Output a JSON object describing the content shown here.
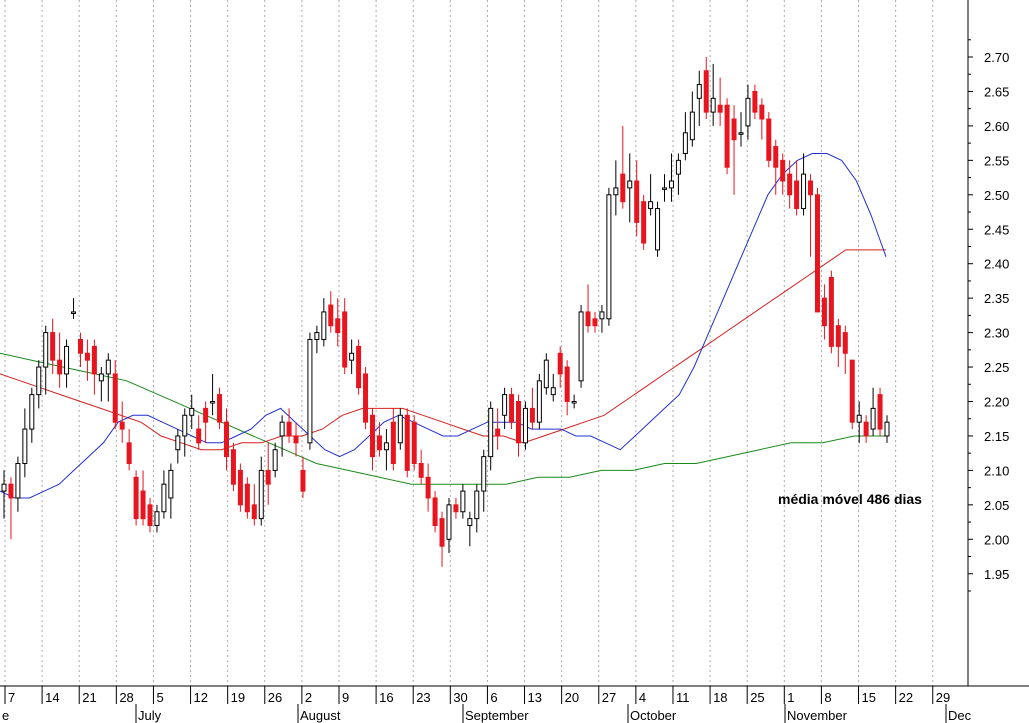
{
  "chart_data": {
    "type": "candlestick",
    "ylim": [
      1.9,
      2.73
    ],
    "y_ticks": [
      "2.70",
      "2.65",
      "2.60",
      "2.55",
      "2.50",
      "2.45",
      "2.40",
      "2.35",
      "2.30",
      "2.25",
      "2.20",
      "2.15",
      "2.10",
      "2.05",
      "2.00",
      "1.95"
    ],
    "day_labels": [
      "7",
      "14",
      "21",
      "28",
      "5",
      "12",
      "19",
      "26",
      "2",
      "9",
      "16",
      "23",
      "30",
      "6",
      "13",
      "20",
      "27",
      "4",
      "11",
      "18",
      "25",
      "1",
      "8",
      "15",
      "22",
      "29"
    ],
    "month_labels": [
      "e",
      "July",
      "August",
      "September",
      "October",
      "November",
      "Dec"
    ],
    "annotation": "média móvel 486 dias",
    "colors": {
      "up": "#ffffff",
      "down": "#e8141e",
      "grid": "#999999",
      "ma_short": "#2030d0",
      "ma_medium": "#d42020",
      "ma_long": "#1a8a1a"
    },
    "candles": [
      {
        "o": 2.07,
        "h": 2.1,
        "l": 2.03,
        "c": 2.08
      },
      {
        "o": 2.08,
        "h": 2.09,
        "l": 2.0,
        "c": 2.06
      },
      {
        "o": 2.06,
        "h": 2.12,
        "l": 2.04,
        "c": 2.11
      },
      {
        "o": 2.11,
        "h": 2.19,
        "l": 2.09,
        "c": 2.16
      },
      {
        "o": 2.16,
        "h": 2.22,
        "l": 2.14,
        "c": 2.21
      },
      {
        "o": 2.21,
        "h": 2.26,
        "l": 2.19,
        "c": 2.25
      },
      {
        "o": 2.25,
        "h": 2.31,
        "l": 2.21,
        "c": 2.3
      },
      {
        "o": 2.3,
        "h": 2.32,
        "l": 2.24,
        "c": 2.26
      },
      {
        "o": 2.26,
        "h": 2.3,
        "l": 2.22,
        "c": 2.24
      },
      {
        "o": 2.24,
        "h": 2.29,
        "l": 2.22,
        "c": 2.28
      },
      {
        "o": 2.33,
        "h": 2.35,
        "l": 2.32,
        "c": 2.33
      },
      {
        "o": 2.29,
        "h": 2.3,
        "l": 2.25,
        "c": 2.27
      },
      {
        "o": 2.27,
        "h": 2.29,
        "l": 2.23,
        "c": 2.26
      },
      {
        "o": 2.28,
        "h": 2.29,
        "l": 2.21,
        "c": 2.24
      },
      {
        "o": 2.23,
        "h": 2.25,
        "l": 2.2,
        "c": 2.24
      },
      {
        "o": 2.24,
        "h": 2.27,
        "l": 2.2,
        "c": 2.26
      },
      {
        "o": 2.24,
        "h": 2.26,
        "l": 2.16,
        "c": 2.17
      },
      {
        "o": 2.17,
        "h": 2.2,
        "l": 2.14,
        "c": 2.16
      },
      {
        "o": 2.14,
        "h": 2.16,
        "l": 2.1,
        "c": 2.11
      },
      {
        "o": 2.09,
        "h": 2.1,
        "l": 2.02,
        "c": 2.03
      },
      {
        "o": 2.07,
        "h": 2.1,
        "l": 2.02,
        "c": 2.03
      },
      {
        "o": 2.05,
        "h": 2.06,
        "l": 2.01,
        "c": 2.02
      },
      {
        "o": 2.02,
        "h": 2.05,
        "l": 2.01,
        "c": 2.04
      },
      {
        "o": 2.04,
        "h": 2.1,
        "l": 2.03,
        "c": 2.08
      },
      {
        "o": 2.06,
        "h": 2.11,
        "l": 2.03,
        "c": 2.1
      },
      {
        "o": 2.13,
        "h": 2.16,
        "l": 2.11,
        "c": 2.15
      },
      {
        "o": 2.15,
        "h": 2.19,
        "l": 2.12,
        "c": 2.18
      },
      {
        "o": 2.18,
        "h": 2.21,
        "l": 2.16,
        "c": 2.19
      },
      {
        "o": 2.16,
        "h": 2.18,
        "l": 2.13,
        "c": 2.14
      },
      {
        "o": 2.19,
        "h": 2.2,
        "l": 2.14,
        "c": 2.17
      },
      {
        "o": 2.2,
        "h": 2.24,
        "l": 2.18,
        "c": 2.2
      },
      {
        "o": 2.21,
        "h": 2.22,
        "l": 2.16,
        "c": 2.17
      },
      {
        "o": 2.17,
        "h": 2.19,
        "l": 2.1,
        "c": 2.12
      },
      {
        "o": 2.13,
        "h": 2.14,
        "l": 2.07,
        "c": 2.08
      },
      {
        "o": 2.1,
        "h": 2.11,
        "l": 2.04,
        "c": 2.05
      },
      {
        "o": 2.08,
        "h": 2.09,
        "l": 2.03,
        "c": 2.04
      },
      {
        "o": 2.05,
        "h": 2.08,
        "l": 2.02,
        "c": 2.03
      },
      {
        "o": 2.03,
        "h": 2.12,
        "l": 2.02,
        "c": 2.1
      },
      {
        "o": 2.1,
        "h": 2.14,
        "l": 2.05,
        "c": 2.08
      },
      {
        "o": 2.1,
        "h": 2.14,
        "l": 2.09,
        "c": 2.13
      },
      {
        "o": 2.15,
        "h": 2.18,
        "l": 2.12,
        "c": 2.17
      },
      {
        "o": 2.17,
        "h": 2.19,
        "l": 2.14,
        "c": 2.15
      },
      {
        "o": 2.15,
        "h": 2.17,
        "l": 2.12,
        "c": 2.14
      },
      {
        "o": 2.1,
        "h": 2.12,
        "l": 2.06,
        "c": 2.07
      },
      {
        "o": 2.14,
        "h": 2.3,
        "l": 2.13,
        "c": 2.29
      },
      {
        "o": 2.29,
        "h": 2.31,
        "l": 2.27,
        "c": 2.3
      },
      {
        "o": 2.29,
        "h": 2.35,
        "l": 2.28,
        "c": 2.33
      },
      {
        "o": 2.34,
        "h": 2.36,
        "l": 2.3,
        "c": 2.31
      },
      {
        "o": 2.32,
        "h": 2.35,
        "l": 2.28,
        "c": 2.3
      },
      {
        "o": 2.33,
        "h": 2.35,
        "l": 2.24,
        "c": 2.25
      },
      {
        "o": 2.26,
        "h": 2.29,
        "l": 2.24,
        "c": 2.27
      },
      {
        "o": 2.28,
        "h": 2.29,
        "l": 2.21,
        "c": 2.22
      },
      {
        "o": 2.24,
        "h": 2.25,
        "l": 2.16,
        "c": 2.17
      },
      {
        "o": 2.18,
        "h": 2.19,
        "l": 2.1,
        "c": 2.12
      },
      {
        "o": 2.15,
        "h": 2.17,
        "l": 2.12,
        "c": 2.13
      },
      {
        "o": 2.13,
        "h": 2.16,
        "l": 2.1,
        "c": 2.14
      },
      {
        "o": 2.17,
        "h": 2.19,
        "l": 2.1,
        "c": 2.11
      },
      {
        "o": 2.14,
        "h": 2.19,
        "l": 2.13,
        "c": 2.18
      },
      {
        "o": 2.18,
        "h": 2.19,
        "l": 2.09,
        "c": 2.1
      },
      {
        "o": 2.17,
        "h": 2.18,
        "l": 2.1,
        "c": 2.11
      },
      {
        "o": 2.11,
        "h": 2.13,
        "l": 2.08,
        "c": 2.09
      },
      {
        "o": 2.09,
        "h": 2.11,
        "l": 2.04,
        "c": 2.06
      },
      {
        "o": 2.06,
        "h": 2.07,
        "l": 2.01,
        "c": 2.02
      },
      {
        "o": 2.03,
        "h": 2.04,
        "l": 1.96,
        "c": 1.99
      },
      {
        "o": 2.0,
        "h": 2.06,
        "l": 1.98,
        "c": 2.05
      },
      {
        "o": 2.05,
        "h": 2.06,
        "l": 2.03,
        "c": 2.04
      },
      {
        "o": 2.04,
        "h": 2.08,
        "l": 2.03,
        "c": 2.07
      },
      {
        "o": 2.02,
        "h": 2.04,
        "l": 1.99,
        "c": 2.03
      },
      {
        "o": 2.03,
        "h": 2.08,
        "l": 2.01,
        "c": 2.07
      },
      {
        "o": 2.07,
        "h": 2.13,
        "l": 2.04,
        "c": 2.12
      },
      {
        "o": 2.12,
        "h": 2.2,
        "l": 2.1,
        "c": 2.19
      },
      {
        "o": 2.16,
        "h": 2.19,
        "l": 2.13,
        "c": 2.15
      },
      {
        "o": 2.18,
        "h": 2.22,
        "l": 2.16,
        "c": 2.21
      },
      {
        "o": 2.21,
        "h": 2.22,
        "l": 2.16,
        "c": 2.17
      },
      {
        "o": 2.2,
        "h": 2.21,
        "l": 2.12,
        "c": 2.14
      },
      {
        "o": 2.14,
        "h": 2.2,
        "l": 2.13,
        "c": 2.19
      },
      {
        "o": 2.19,
        "h": 2.22,
        "l": 2.16,
        "c": 2.17
      },
      {
        "o": 2.17,
        "h": 2.24,
        "l": 2.16,
        "c": 2.23
      },
      {
        "o": 2.22,
        "h": 2.27,
        "l": 2.21,
        "c": 2.26
      },
      {
        "o": 2.21,
        "h": 2.24,
        "l": 2.2,
        "c": 2.22
      },
      {
        "o": 2.27,
        "h": 2.28,
        "l": 2.22,
        "c": 2.24
      },
      {
        "o": 2.25,
        "h": 2.26,
        "l": 2.18,
        "c": 2.2
      },
      {
        "o": 2.2,
        "h": 2.21,
        "l": 2.19,
        "c": 2.2
      },
      {
        "o": 2.23,
        "h": 2.34,
        "l": 2.22,
        "c": 2.33
      },
      {
        "o": 2.33,
        "h": 2.37,
        "l": 2.3,
        "c": 2.31
      },
      {
        "o": 2.32,
        "h": 2.33,
        "l": 2.3,
        "c": 2.31
      },
      {
        "o": 2.32,
        "h": 2.34,
        "l": 2.3,
        "c": 2.33
      },
      {
        "o": 2.32,
        "h": 2.51,
        "l": 2.31,
        "c": 2.5
      },
      {
        "o": 2.5,
        "h": 2.55,
        "l": 2.47,
        "c": 2.51
      },
      {
        "o": 2.53,
        "h": 2.6,
        "l": 2.48,
        "c": 2.49
      },
      {
        "o": 2.51,
        "h": 2.56,
        "l": 2.46,
        "c": 2.52
      },
      {
        "o": 2.52,
        "h": 2.55,
        "l": 2.44,
        "c": 2.46
      },
      {
        "o": 2.49,
        "h": 2.5,
        "l": 2.42,
        "c": 2.43
      },
      {
        "o": 2.48,
        "h": 2.53,
        "l": 2.47,
        "c": 2.49
      },
      {
        "o": 2.42,
        "h": 2.49,
        "l": 2.41,
        "c": 2.48
      },
      {
        "o": 2.51,
        "h": 2.53,
        "l": 2.49,
        "c": 2.51
      },
      {
        "o": 2.51,
        "h": 2.56,
        "l": 2.49,
        "c": 2.52
      },
      {
        "o": 2.53,
        "h": 2.56,
        "l": 2.5,
        "c": 2.55
      },
      {
        "o": 2.56,
        "h": 2.62,
        "l": 2.55,
        "c": 2.59
      },
      {
        "o": 2.58,
        "h": 2.65,
        "l": 2.57,
        "c": 2.62
      },
      {
        "o": 2.64,
        "h": 2.68,
        "l": 2.6,
        "c": 2.66
      },
      {
        "o": 2.68,
        "h": 2.7,
        "l": 2.61,
        "c": 2.62
      },
      {
        "o": 2.62,
        "h": 2.69,
        "l": 2.6,
        "c": 2.64
      },
      {
        "o": 2.63,
        "h": 2.67,
        "l": 2.6,
        "c": 2.62
      },
      {
        "o": 2.63,
        "h": 2.64,
        "l": 2.53,
        "c": 2.54
      },
      {
        "o": 2.61,
        "h": 2.63,
        "l": 2.5,
        "c": 2.58
      },
      {
        "o": 2.59,
        "h": 2.62,
        "l": 2.57,
        "c": 2.59
      },
      {
        "o": 2.6,
        "h": 2.66,
        "l": 2.58,
        "c": 2.64
      },
      {
        "o": 2.65,
        "h": 2.66,
        "l": 2.61,
        "c": 2.62
      },
      {
        "o": 2.63,
        "h": 2.64,
        "l": 2.58,
        "c": 2.61
      },
      {
        "o": 2.61,
        "h": 2.62,
        "l": 2.54,
        "c": 2.55
      },
      {
        "o": 2.57,
        "h": 2.58,
        "l": 2.5,
        "c": 2.54
      },
      {
        "o": 2.55,
        "h": 2.56,
        "l": 2.5,
        "c": 2.52
      },
      {
        "o": 2.53,
        "h": 2.55,
        "l": 2.48,
        "c": 2.5
      },
      {
        "o": 2.52,
        "h": 2.55,
        "l": 2.47,
        "c": 2.48
      },
      {
        "o": 2.48,
        "h": 2.56,
        "l": 2.47,
        "c": 2.53
      },
      {
        "o": 2.52,
        "h": 2.53,
        "l": 2.41,
        "c": 2.5
      },
      {
        "o": 2.5,
        "h": 2.51,
        "l": 2.33,
        "c": 2.33
      },
      {
        "o": 2.35,
        "h": 2.37,
        "l": 2.29,
        "c": 2.31
      },
      {
        "o": 2.38,
        "h": 2.39,
        "l": 2.27,
        "c": 2.28
      },
      {
        "o": 2.31,
        "h": 2.32,
        "l": 2.25,
        "c": 2.28
      },
      {
        "o": 2.3,
        "h": 2.31,
        "l": 2.24,
        "c": 2.27
      },
      {
        "o": 2.26,
        "h": 2.26,
        "l": 2.16,
        "c": 2.17
      },
      {
        "o": 2.17,
        "h": 2.2,
        "l": 2.14,
        "c": 2.18
      },
      {
        "o": 2.17,
        "h": 2.18,
        "l": 2.14,
        "c": 2.15
      },
      {
        "o": 2.16,
        "h": 2.22,
        "l": 2.15,
        "c": 2.19
      },
      {
        "o": 2.21,
        "h": 2.22,
        "l": 2.15,
        "c": 2.16
      },
      {
        "o": 2.15,
        "h": 2.18,
        "l": 2.14,
        "c": 2.17
      }
    ],
    "ma_short": [
      2.07,
      2.06,
      2.06,
      2.07,
      2.08,
      2.1,
      2.12,
      2.14,
      2.17,
      2.18,
      2.18,
      2.17,
      2.16,
      2.15,
      2.14,
      2.14,
      2.15,
      2.16,
      2.18,
      2.19,
      2.17,
      2.15,
      2.13,
      2.12,
      2.13,
      2.15,
      2.17,
      2.18,
      2.17,
      2.16,
      2.15,
      2.15,
      2.16,
      2.17,
      2.17,
      2.17,
      2.16,
      2.16,
      2.16,
      2.15,
      2.15,
      2.14,
      2.13,
      2.15,
      2.17,
      2.19,
      2.21,
      2.25,
      2.3,
      2.35,
      2.4,
      2.45,
      2.5,
      2.53,
      2.55,
      2.56,
      2.56,
      2.55,
      2.52,
      2.47,
      2.41
    ],
    "ma_medium": [
      2.24,
      2.23,
      2.22,
      2.21,
      2.2,
      2.19,
      2.18,
      2.17,
      2.15,
      2.14,
      2.13,
      2.13,
      2.14,
      2.14,
      2.15,
      2.15,
      2.16,
      2.18,
      2.19,
      2.19,
      2.19,
      2.18,
      2.17,
      2.16,
      2.15,
      2.15,
      2.14,
      2.15,
      2.16,
      2.17,
      2.18,
      2.2,
      2.22,
      2.24,
      2.26,
      2.28,
      2.3,
      2.32,
      2.34,
      2.36,
      2.38,
      2.4,
      2.42,
      2.42,
      2.42
    ],
    "ma_long": [
      2.27,
      2.26,
      2.25,
      2.24,
      2.23,
      2.21,
      2.19,
      2.17,
      2.15,
      2.13,
      2.11,
      2.1,
      2.09,
      2.08,
      2.08,
      2.08,
      2.08,
      2.09,
      2.09,
      2.1,
      2.1,
      2.11,
      2.11,
      2.12,
      2.13,
      2.14,
      2.14,
      2.15,
      2.15
    ]
  }
}
